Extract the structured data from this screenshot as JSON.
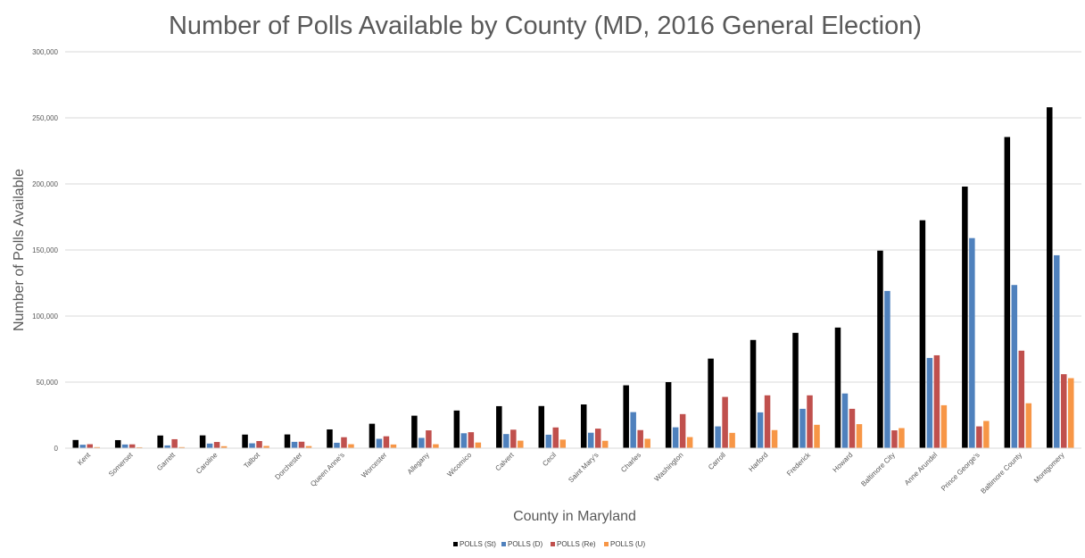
{
  "chart_data": {
    "type": "bar",
    "title": "Number of Polls Available by County (MD, 2016 General Election)",
    "xlabel": "County in Maryland",
    "ylabel": "Number of Polls Available",
    "ylim": [
      0,
      300000
    ],
    "yticks": [
      0,
      50000,
      100000,
      150000,
      200000,
      250000,
      300000
    ],
    "ytick_labels": [
      "0",
      "50,000",
      "100,000",
      "150,000",
      "200,000",
      "250,000",
      "300,000"
    ],
    "grid": true,
    "legend_position": "bottom",
    "categories": [
      "Kent",
      "Somerset",
      "Garrett",
      "Caroline",
      "Talbot",
      "Dorchester",
      "Queen Anne's",
      "Worcester",
      "Allegany",
      "Wicomico",
      "Calvert",
      "Cecil",
      "Saint Mary's",
      "Charles",
      "Washington",
      "Carroll",
      "Harford",
      "Frederick",
      "Howard",
      "Baltimore City",
      "Anne Arundel",
      "Prince George's",
      "Baltimore County",
      "Montgomery"
    ],
    "series": [
      {
        "name": "POLLS (St)",
        "color": "#000000",
        "values": [
          6200,
          6100,
          9600,
          9700,
          10300,
          10400,
          14200,
          18500,
          24600,
          28500,
          31800,
          31900,
          33100,
          47600,
          50000,
          67800,
          81900,
          87300,
          91300,
          149500,
          172500,
          198000,
          235500,
          258000
        ]
      },
      {
        "name": "POLLS (D)",
        "color": "#4F81BD",
        "values": [
          2600,
          2800,
          2100,
          3500,
          3700,
          4800,
          4100,
          7100,
          7800,
          11300,
          10700,
          10200,
          11700,
          27300,
          15800,
          16500,
          27100,
          29800,
          41400,
          119000,
          68300,
          159000,
          123500,
          146000
        ]
      },
      {
        "name": "POLLS (Re)",
        "color": "#C0504D",
        "values": [
          3000,
          2900,
          6800,
          4700,
          5400,
          4900,
          8300,
          9000,
          13500,
          12100,
          14000,
          15700,
          14800,
          13700,
          25800,
          38800,
          40000,
          40000,
          29800,
          13500,
          70300,
          16500,
          73800,
          56000
        ]
      },
      {
        "name": "POLLS (U)",
        "color": "#F79646",
        "values": [
          800,
          700,
          800,
          1500,
          1700,
          1600,
          3000,
          2800,
          3000,
          4300,
          5700,
          6500,
          5600,
          7100,
          8400,
          11600,
          13700,
          17700,
          18200,
          15200,
          32500,
          20600,
          34000,
          53000
        ]
      }
    ]
  }
}
